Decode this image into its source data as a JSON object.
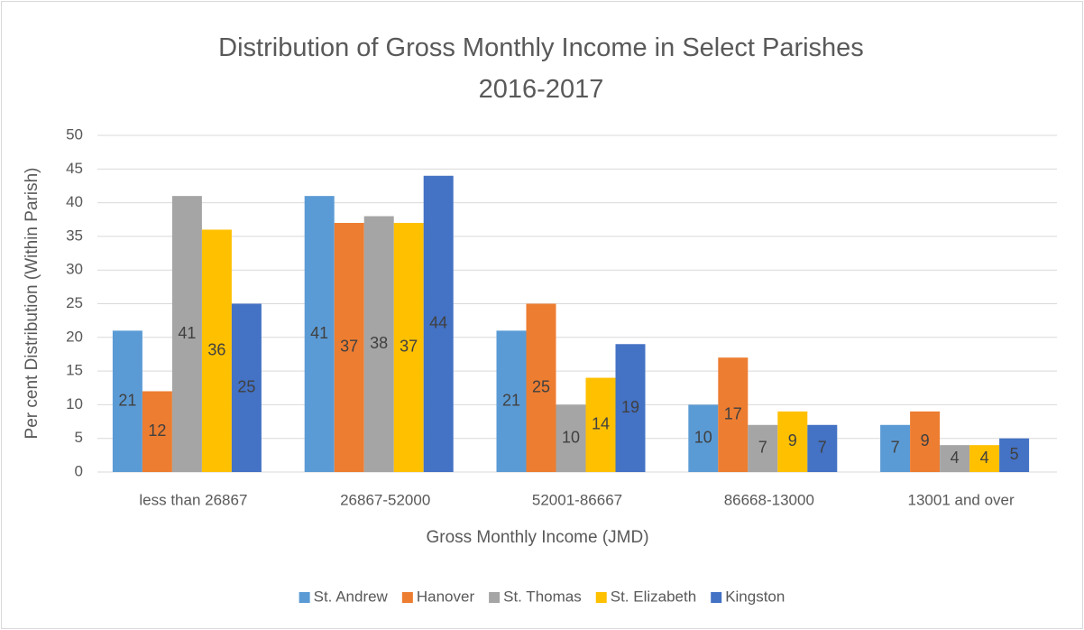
{
  "chart_data": {
    "type": "bar",
    "title": "Distribution of Gross Monthly Income in Select Parishes  2016-2017",
    "x_label": "Gross Monthly Income (JMD)",
    "y_label": "Per cent Distribution (Within Parish)",
    "categories": [
      "less than 26867",
      "26867-52000",
      "52001-86667",
      "86668-13000",
      "13001 and over"
    ],
    "series": [
      {
        "name": "St. Andrew",
        "color": "#5b9bd5",
        "values": [
          21,
          41,
          21,
          10,
          7
        ]
      },
      {
        "name": "Hanover",
        "color": "#ed7d31",
        "values": [
          12,
          37,
          25,
          17,
          9
        ]
      },
      {
        "name": "St. Thomas",
        "color": "#a5a5a5",
        "values": [
          41,
          38,
          10,
          7,
          4
        ]
      },
      {
        "name": "St. Elizabeth",
        "color": "#ffc000",
        "values": [
          36,
          37,
          14,
          9,
          4
        ]
      },
      {
        "name": "Kingston",
        "color": "#4472c4",
        "values": [
          25,
          44,
          19,
          7,
          5
        ]
      }
    ],
    "ylim": [
      0,
      50
    ],
    "yticks": [
      0,
      5,
      10,
      15,
      20,
      25,
      30,
      35,
      40,
      45,
      50
    ],
    "grid": true,
    "legend": "bottom"
  }
}
